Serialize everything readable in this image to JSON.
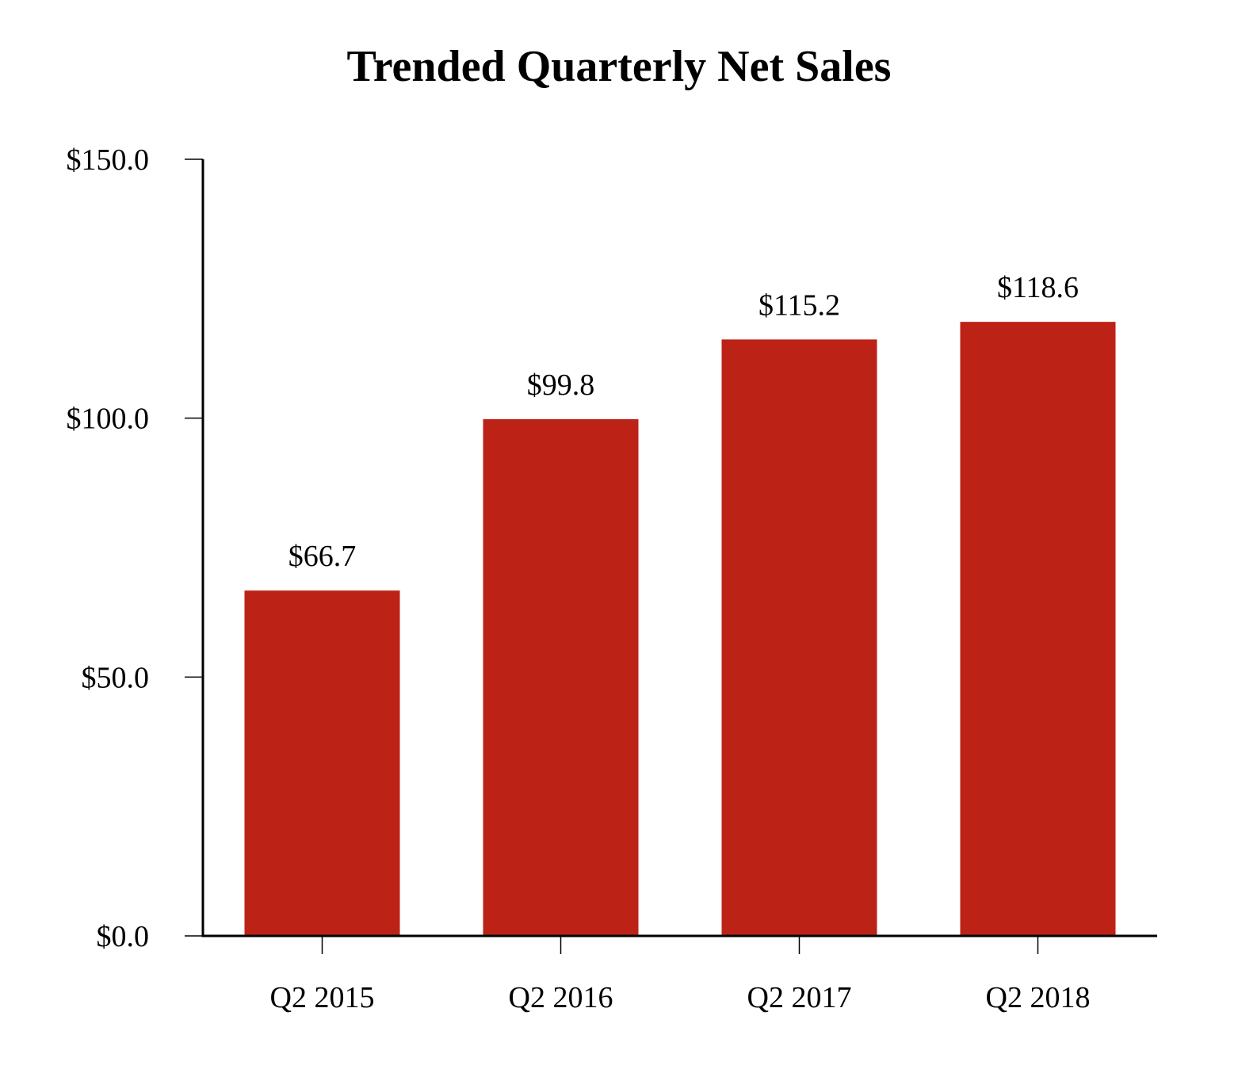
{
  "chart_data": {
    "type": "bar",
    "title": "Trended Quarterly Net Sales",
    "xlabel": "",
    "ylabel": "",
    "categories": [
      "Q2 2015",
      "Q2 2016",
      "Q2 2017",
      "Q2 2018"
    ],
    "values": [
      66.7,
      99.8,
      115.2,
      118.6
    ],
    "data_labels": [
      "$66.7",
      "$99.8",
      "$115.2",
      "$118.6"
    ],
    "ylim": [
      0,
      150
    ],
    "y_ticks": [
      0,
      50,
      100,
      150
    ],
    "y_tick_labels": [
      "$0.0",
      "$50.0",
      "$100.0",
      "$150.0"
    ],
    "grid": false,
    "legend": "none",
    "bar_color": "#bd2217",
    "axis_color": "#000000"
  }
}
